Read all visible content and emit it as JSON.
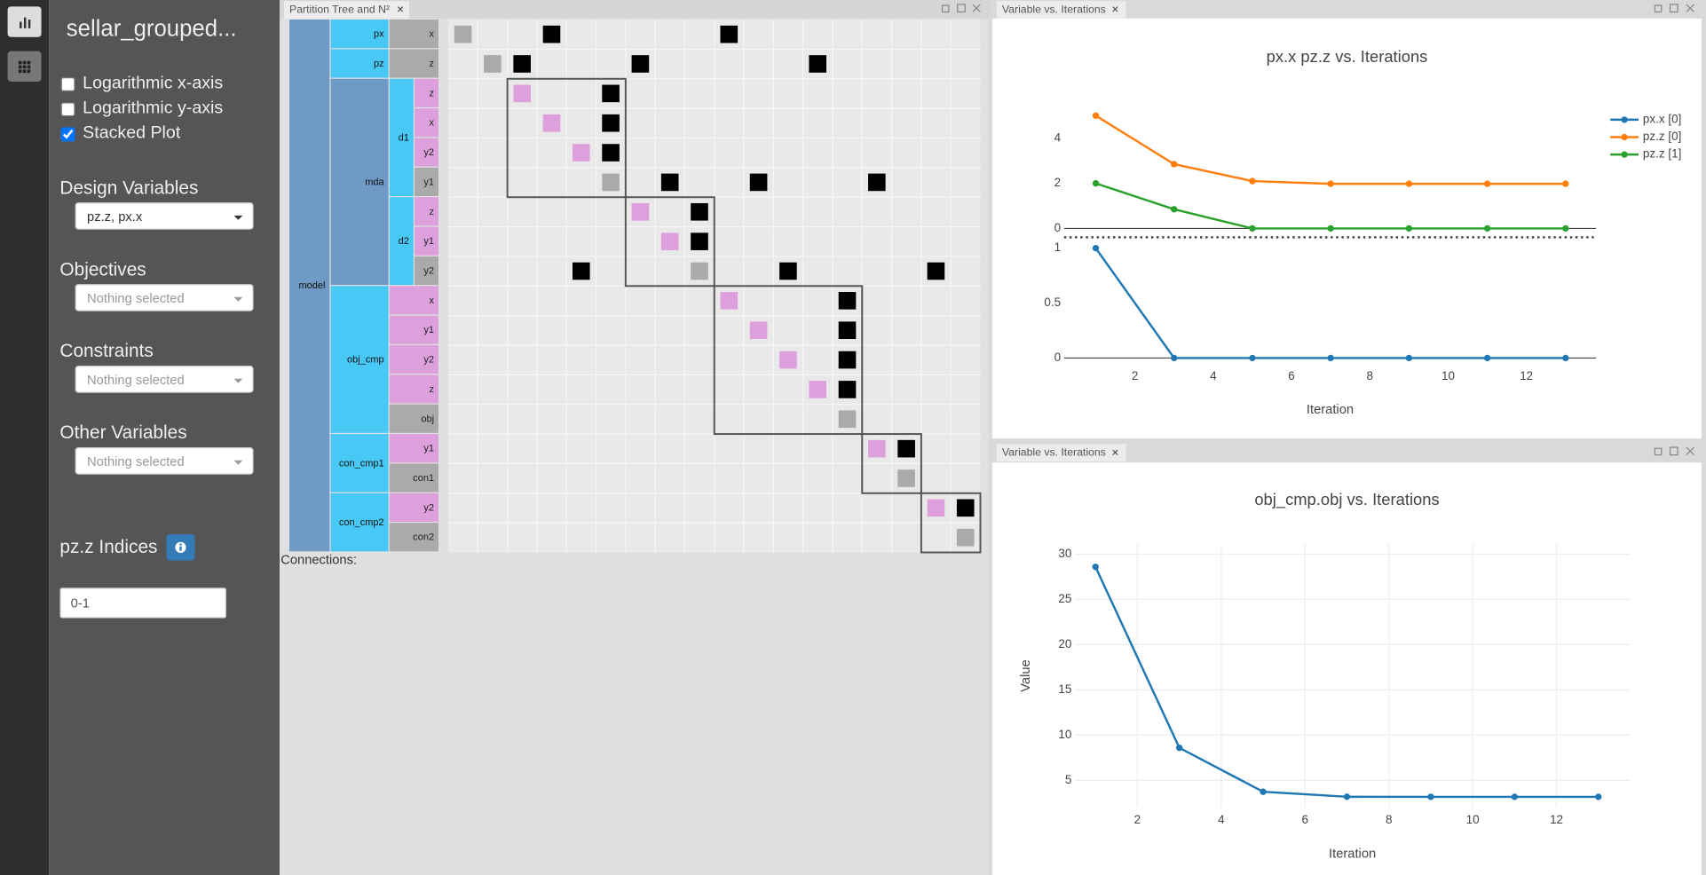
{
  "sidebar": {
    "title": "sellar_grouped...",
    "options": [
      {
        "label": "Logarithmic x-axis",
        "checked": false
      },
      {
        "label": "Logarithmic y-axis",
        "checked": false
      },
      {
        "label": "Stacked Plot",
        "checked": true
      }
    ],
    "selects": [
      {
        "label": "Design Variables",
        "value": "pz.z, px.x"
      },
      {
        "label": "Objectives",
        "placeholder": "Nothing selected"
      },
      {
        "label": "Constraints",
        "placeholder": "Nothing selected"
      },
      {
        "label": "Other Variables",
        "placeholder": "Nothing selected"
      }
    ],
    "indices": {
      "label": "pz.z Indices",
      "value": "0-1"
    }
  },
  "n2": {
    "tab": "Partition Tree and N²",
    "footer": "Connections:",
    "connection_color": "#000000",
    "tree": {
      "label": "model",
      "children": [
        {
          "label": "px",
          "children": [
            {
              "label": "x",
              "type": "output"
            }
          ]
        },
        {
          "label": "pz",
          "children": [
            {
              "label": "z",
              "type": "output"
            }
          ]
        },
        {
          "label": "mda",
          "children": [
            {
              "label": "d1",
              "children": [
                {
                  "label": "z",
                  "type": "input"
                },
                {
                  "label": "x",
                  "type": "input"
                },
                {
                  "label": "y2",
                  "type": "input"
                },
                {
                  "label": "y1",
                  "type": "output"
                }
              ]
            },
            {
              "label": "d2",
              "children": [
                {
                  "label": "z",
                  "type": "input"
                },
                {
                  "label": "y1",
                  "type": "input"
                },
                {
                  "label": "y2",
                  "type": "output"
                }
              ]
            }
          ]
        },
        {
          "label": "obj_cmp",
          "children": [
            {
              "label": "x",
              "type": "input"
            },
            {
              "label": "y1",
              "type": "input"
            },
            {
              "label": "y2",
              "type": "input"
            },
            {
              "label": "z",
              "type": "input"
            },
            {
              "label": "obj",
              "type": "output"
            }
          ]
        },
        {
          "label": "con_cmp1",
          "children": [
            {
              "label": "y1",
              "type": "input"
            },
            {
              "label": "con1",
              "type": "output"
            }
          ]
        },
        {
          "label": "con_cmp2",
          "children": [
            {
              "label": "y2",
              "type": "input"
            },
            {
              "label": "con2",
              "type": "output"
            }
          ]
        }
      ]
    },
    "connections": [
      [
        0,
        3
      ],
      [
        0,
        9
      ],
      [
        1,
        2
      ],
      [
        1,
        6
      ],
      [
        1,
        12
      ],
      [
        2,
        5
      ],
      [
        3,
        5
      ],
      [
        4,
        5
      ],
      [
        5,
        7
      ],
      [
        5,
        10
      ],
      [
        5,
        14
      ],
      [
        6,
        8
      ],
      [
        7,
        8
      ],
      [
        8,
        4
      ],
      [
        8,
        11
      ],
      [
        8,
        16
      ],
      [
        9,
        13
      ],
      [
        10,
        13
      ],
      [
        11,
        13
      ],
      [
        12,
        13
      ],
      [
        14,
        15
      ],
      [
        16,
        17
      ]
    ]
  },
  "panels": [
    "Variable vs. Iterations",
    "Variable vs. Iterations"
  ],
  "chart_data": [
    {
      "type": "line",
      "title": "px.x pz.z  vs. Iterations",
      "xlabel": "Iteration",
      "x": [
        1,
        3,
        5,
        7,
        9,
        11,
        13
      ],
      "xlim": [
        0.19,
        13.78
      ],
      "xticks": [
        2,
        4,
        6,
        8,
        10,
        12
      ],
      "subplots": [
        {
          "ylim": [
            -0.39,
            5.4
          ],
          "yticks": [
            0,
            2,
            4
          ],
          "series": [
            {
              "name": "pz.z [0]",
              "color": "#ff7f0e",
              "values": [
                5,
                2.85,
                2.1,
                1.98,
                1.98,
                1.98,
                1.98
              ]
            },
            {
              "name": "pz.z [1]",
              "color": "#2ca02c",
              "values": [
                2,
                0.85,
                0,
                0,
                0,
                0,
                0
              ]
            }
          ]
        },
        {
          "ylim": [
            -0.03,
            1.06
          ],
          "yticks": [
            0,
            0.5,
            1
          ],
          "series": [
            {
              "name": "px.x [0]",
              "color": "#1f77b4",
              "values": [
                1,
                0,
                0,
                0,
                0,
                0,
                0
              ]
            }
          ]
        }
      ]
    },
    {
      "type": "line",
      "title": "obj_cmp.obj  vs. Iterations",
      "xlabel": "Iteration",
      "ylabel": "Value",
      "grid": true,
      "x": [
        1,
        3,
        5,
        7,
        9,
        11,
        13
      ],
      "xlim": [
        0.51,
        13.75
      ],
      "xticks": [
        2,
        4,
        6,
        8,
        10,
        12
      ],
      "subplots": [
        {
          "ylim": [
            2,
            31.1
          ],
          "yticks": [
            5,
            10,
            15,
            20,
            25,
            30
          ],
          "series": [
            {
              "color": "#1f77b4",
              "values": [
                28.59,
                8.6,
                3.74,
                3.19,
                3.18,
                3.18,
                3.18
              ]
            }
          ]
        }
      ]
    }
  ]
}
